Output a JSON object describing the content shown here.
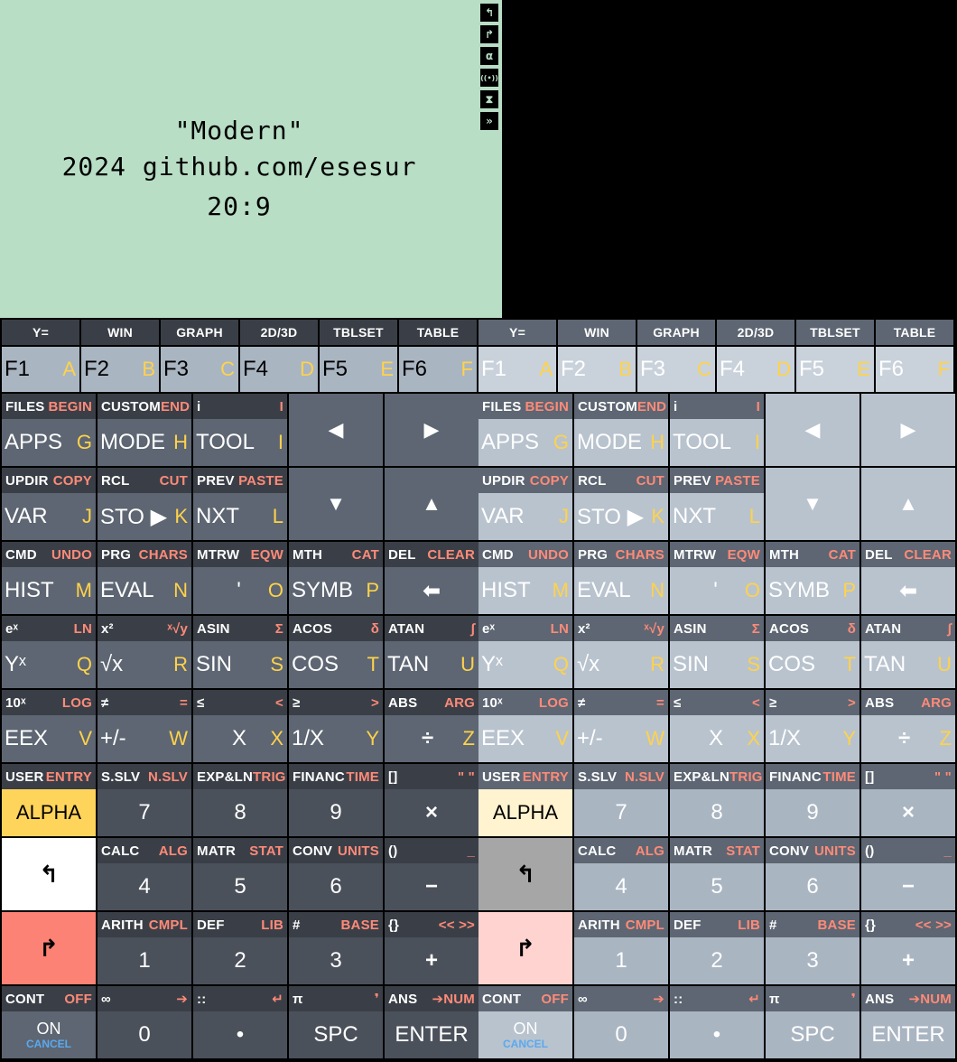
{
  "lcd": {
    "line1": "\"Modern\"",
    "line2": "2024 github.com/esesur",
    "line3": "20:9",
    "annunciators": [
      "left-shift",
      "right-shift",
      "alpha",
      "transmitting",
      "busy",
      "power"
    ]
  },
  "colors": {
    "lcd_bg": "#b8dec5",
    "key_dark": "#5d6672",
    "key_dark_shift": "#3a3f47",
    "left_shift_color": "#ffffff",
    "right_shift_color": "#ff8a78",
    "alpha_color": "#ffd24a",
    "right_shift_key": "#fc8275",
    "alpha_key": "#ffd45a"
  },
  "function_keys": [
    {
      "top": "Y=",
      "main": "F1",
      "alpha": "A"
    },
    {
      "top": "WIN",
      "main": "F2",
      "alpha": "B"
    },
    {
      "top": "GRAPH",
      "main": "F3",
      "alpha": "C"
    },
    {
      "top": "2D/3D",
      "main": "F4",
      "alpha": "D"
    },
    {
      "top": "TBLSET",
      "main": "F5",
      "alpha": "E"
    },
    {
      "top": "TABLE",
      "main": "F6",
      "alpha": "F"
    }
  ],
  "keys": {
    "apps": {
      "ls": "FILES",
      "rs": "BEGIN",
      "main": "APPS",
      "alpha": "G"
    },
    "mode": {
      "ls": "CUSTOM",
      "rs": "END",
      "main": "MODE",
      "alpha": "H"
    },
    "tool": {
      "ls": "i",
      "rs": "I",
      "main": "TOOL",
      "alpha": "I"
    },
    "left": {
      "main": "◀"
    },
    "right": {
      "main": "▶"
    },
    "var": {
      "ls": "UPDIR",
      "rs": "COPY",
      "main": "VAR",
      "alpha": "J"
    },
    "sto": {
      "ls": "RCL",
      "rs": "CUT",
      "main": "STO ▶",
      "alpha": "K"
    },
    "nxt": {
      "ls": "PREV",
      "rs": "PASTE",
      "main": "NXT",
      "alpha": "L"
    },
    "down": {
      "main": "▼"
    },
    "up": {
      "main": "▲"
    },
    "hist": {
      "ls": "CMD",
      "rs": "UNDO",
      "main": "HIST",
      "alpha": "M"
    },
    "eval": {
      "ls": "PRG",
      "rs": "CHARS",
      "main": "EVAL",
      "alpha": "N"
    },
    "quote": {
      "ls": "MTRW",
      "rs": "EQW",
      "main": "'",
      "alpha": "O"
    },
    "symb": {
      "ls": "MTH",
      "rs": "CAT",
      "main": "SYMB",
      "alpha": "P"
    },
    "del": {
      "ls": "DEL",
      "rs": "CLEAR",
      "main": "⬅"
    },
    "yx": {
      "ls": "eˣ",
      "rs": "LN",
      "main": "Yˣ",
      "alpha": "Q"
    },
    "sqrt": {
      "ls": "x²",
      "rs": "ˣ√y",
      "main": "√x",
      "alpha": "R"
    },
    "sin": {
      "ls": "ASIN",
      "rs": "Σ",
      "main": "SIN",
      "alpha": "S"
    },
    "cos": {
      "ls": "ACOS",
      "rs": "δ",
      "main": "COS",
      "alpha": "T"
    },
    "tan": {
      "ls": "ATAN",
      "rs": "∫",
      "main": "TAN",
      "alpha": "U"
    },
    "eex": {
      "ls": "10ˣ",
      "rs": "LOG",
      "main": "EEX",
      "alpha": "V"
    },
    "chs": {
      "ls": "≠",
      "rs": "=",
      "main": "+/-",
      "alpha": "W"
    },
    "x": {
      "ls": "≤",
      "rs": "<",
      "main": "X",
      "alpha": "X"
    },
    "inv": {
      "ls": "≥",
      "rs": ">",
      "main": "1/X",
      "alpha": "Y"
    },
    "div": {
      "ls": "ABS",
      "rs": "ARG",
      "main": "÷",
      "alpha": "Z"
    },
    "alpha": {
      "ls": "USER",
      "rs": "ENTRY",
      "main": "ALPHA"
    },
    "n7": {
      "ls": "S.SLV",
      "rs": "N.SLV",
      "main": "7"
    },
    "n8": {
      "ls": "EXP&LN",
      "rs": "TRIG",
      "main": "8"
    },
    "n9": {
      "ls": "FINANC",
      "rs": "TIME",
      "main": "9"
    },
    "mul": {
      "ls": "[]",
      "rs": "\" \"",
      "main": "×"
    },
    "lshift": {
      "main": "↰"
    },
    "n4": {
      "ls": "CALC",
      "rs": "ALG",
      "main": "4"
    },
    "n5": {
      "ls": "MATR",
      "rs": "STAT",
      "main": "5"
    },
    "n6": {
      "ls": "CONV",
      "rs": "UNITS",
      "main": "6"
    },
    "sub": {
      "ls": "()",
      "rs": "_",
      "main": "−"
    },
    "rshift": {
      "main": "↱"
    },
    "n1": {
      "ls": "ARITH",
      "rs": "CMPL",
      "main": "1"
    },
    "n2": {
      "ls": "DEF",
      "rs": "LIB",
      "main": "2"
    },
    "n3": {
      "ls": "#",
      "rs": "BASE",
      "main": "3"
    },
    "add": {
      "ls": "{}",
      "rs": "<< >>",
      "main": "+"
    },
    "on": {
      "ls": "CONT",
      "rs": "OFF",
      "main": "ON",
      "sub": "CANCEL"
    },
    "n0": {
      "ls": "∞",
      "rs": "➔",
      "main": "0"
    },
    "dot": {
      "ls": "::",
      "rs": "↵",
      "main": "•"
    },
    "spc": {
      "ls": "π",
      "rs": "❜",
      "main": "SPC"
    },
    "enter": {
      "ls": "ANS",
      "rs": "➔NUM",
      "main": "ENTER"
    }
  }
}
